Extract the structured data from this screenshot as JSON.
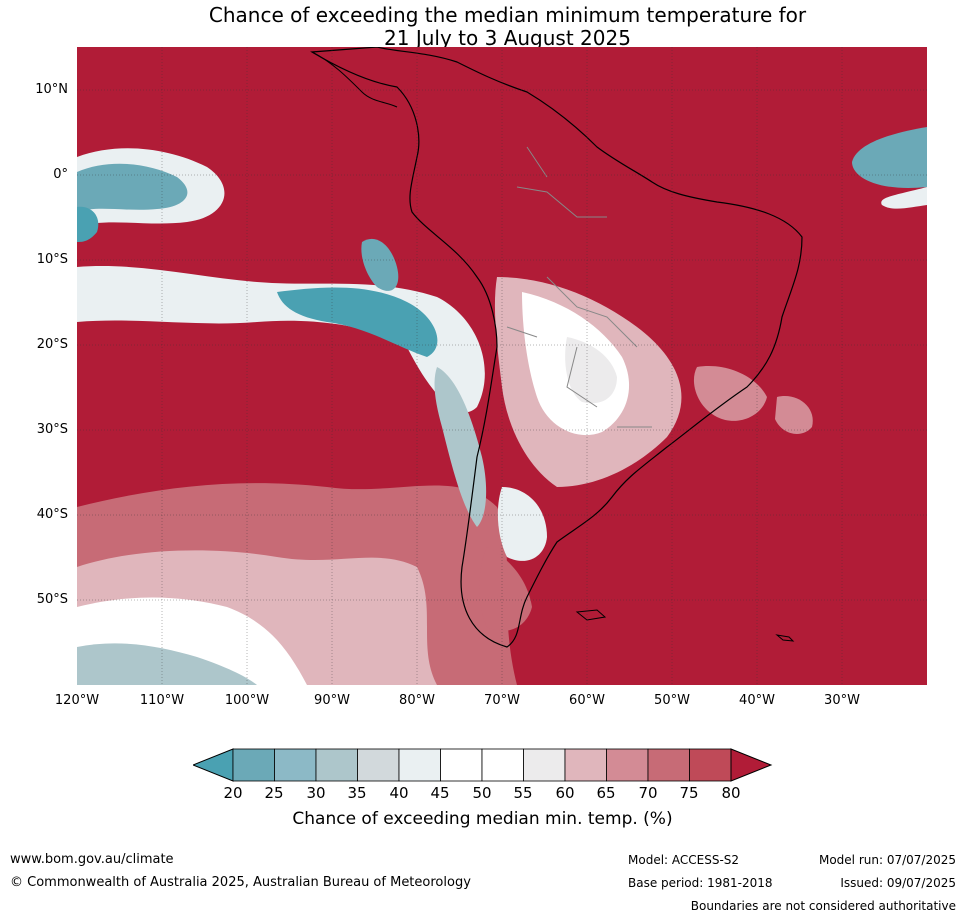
{
  "title_line1": "Chance of exceeding the median minimum temperature for",
  "title_line2": "21 July to 3 August 2025",
  "lat_labels": [
    "10°N",
    "0°",
    "10°S",
    "20°S",
    "30°S",
    "40°S",
    "50°S"
  ],
  "lon_labels": [
    "120°W",
    "110°W",
    "100°W",
    "90°W",
    "80°W",
    "70°W",
    "60°W",
    "50°W",
    "40°W",
    "30°W"
  ],
  "colorbar": {
    "ticks": [
      "20",
      "25",
      "30",
      "35",
      "40",
      "45",
      "50",
      "55",
      "60",
      "65",
      "70",
      "75",
      "80"
    ],
    "colors": [
      "#4aa1b2",
      "#6ba9b7",
      "#8cb9c6",
      "#adc6cb",
      "#d2d9dc",
      "#eaf0f2",
      "#ffffff",
      "#ffffff",
      "#ecebec",
      "#e0b6bc",
      "#d38b95",
      "#c76b76",
      "#bf4a58",
      "#b11c37"
    ],
    "label": "Chance of exceeding median min. temp. (%)"
  },
  "footer": {
    "url": "www.bom.gov.au/climate",
    "copyright": "© Commonwealth of Australia 2025, Australian Bureau of Meteorology",
    "model": "Model: ACCESS-S2",
    "base_period": "Base period: 1981-2018",
    "model_run": "Model run: 07/07/2025",
    "issued": "Issued: 09/07/2025",
    "disclaimer": "Boundaries are not considered authoritative"
  }
}
